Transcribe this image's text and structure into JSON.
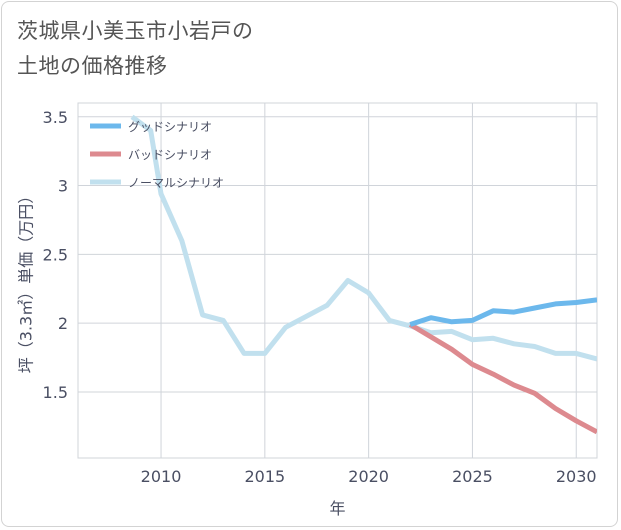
{
  "title_line1": "茨城県小美玉市小岩戸の",
  "title_line2": "土地の価格推移",
  "chart_data": {
    "type": "line",
    "xlabel": "年",
    "ylabel": "坪（3.3㎡）単価（万円）",
    "xlim": [
      2006,
      2031
    ],
    "ylim": [
      1.02,
      3.6
    ],
    "xticks": [
      2010,
      2015,
      2020,
      2025,
      2030
    ],
    "yticks": [
      1.5,
      2,
      2.5,
      3,
      3.5
    ],
    "ytick_labels": [
      "1.5",
      "2",
      "2.5",
      "3",
      "3.5"
    ],
    "grid": true,
    "legend_position": "top-left",
    "series": [
      {
        "name": "グッドシナリオ",
        "color": "#6cb8ec",
        "x": [
          2022,
          2023,
          2024,
          2025,
          2026,
          2027,
          2028,
          2029,
          2030,
          2031
        ],
        "y": [
          1.99,
          2.04,
          2.01,
          2.02,
          2.09,
          2.08,
          2.11,
          2.14,
          2.15,
          2.17
        ]
      },
      {
        "name": "バッドシナリオ",
        "color": "#dd8a8f",
        "x": [
          2022,
          2023,
          2024,
          2025,
          2026,
          2027,
          2028,
          2029,
          2030,
          2031
        ],
        "y": [
          1.99,
          1.9,
          1.81,
          1.7,
          1.63,
          1.55,
          1.49,
          1.38,
          1.29,
          1.21
        ]
      },
      {
        "name": "ノーマルシナリオ",
        "color": "#c1e0ee",
        "x": [
          2008.6,
          2009.5,
          2010,
          2011,
          2012,
          2013,
          2014,
          2015,
          2016,
          2017,
          2018,
          2019,
          2020,
          2021,
          2022,
          2023,
          2024,
          2025,
          2026,
          2027,
          2028,
          2029,
          2030,
          2031
        ],
        "y": [
          3.5,
          3.4,
          2.94,
          2.6,
          2.06,
          2.02,
          1.78,
          1.78,
          1.97,
          2.05,
          2.13,
          2.31,
          2.22,
          2.02,
          1.98,
          1.93,
          1.94,
          1.88,
          1.89,
          1.85,
          1.83,
          1.78,
          1.78,
          1.74
        ]
      }
    ]
  }
}
